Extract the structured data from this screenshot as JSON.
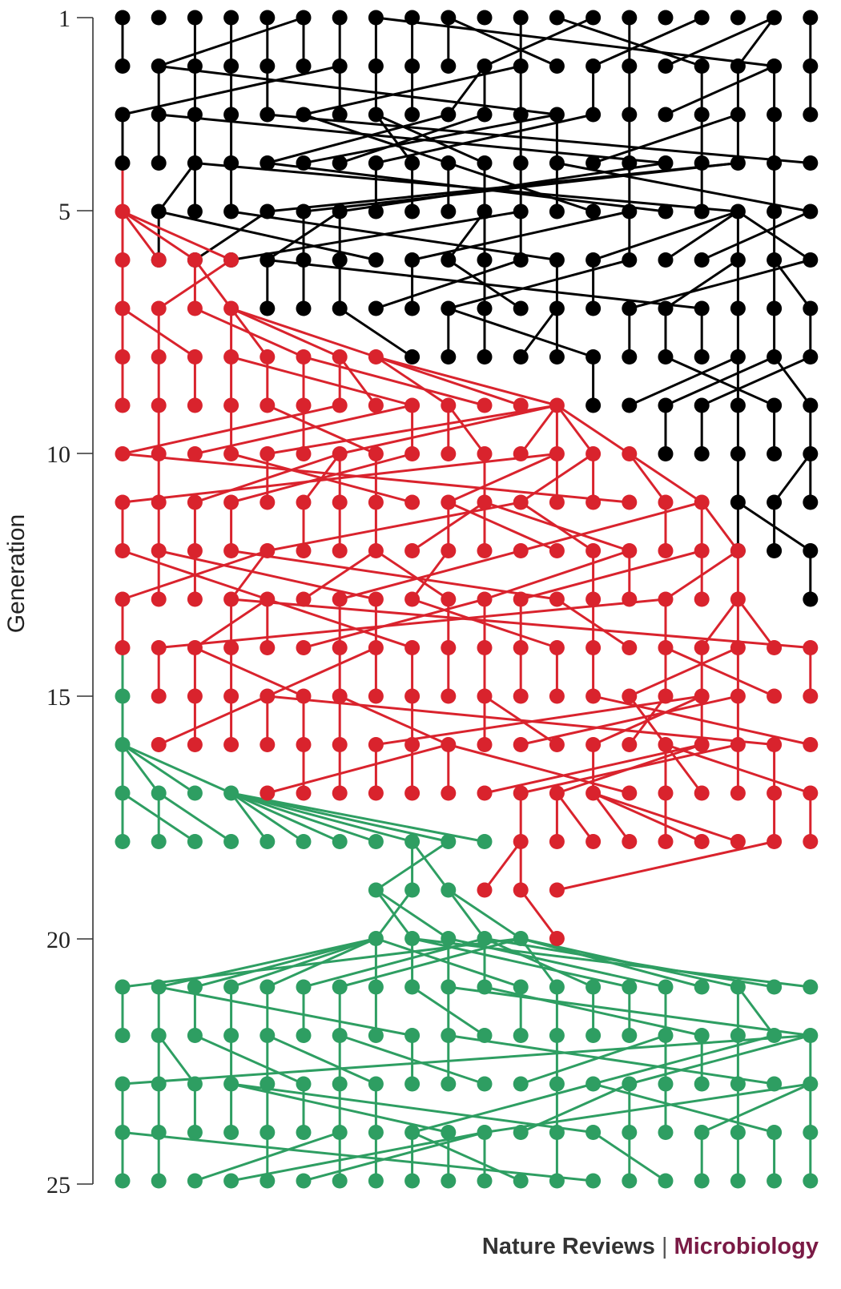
{
  "axis": {
    "title": "Generation",
    "ticks": [
      "1",
      "5",
      "10",
      "15",
      "20",
      "25"
    ]
  },
  "colors": {
    "generations_1_to_13": "#000000",
    "generations_5_to_20": "#d9232d",
    "generations_15_to_25": "#2e9e62",
    "axis": "#333333",
    "brand": "#7a1a45"
  },
  "footer": {
    "journal": "Nature Reviews",
    "separator": "|",
    "section": "Microbiology"
  }
}
